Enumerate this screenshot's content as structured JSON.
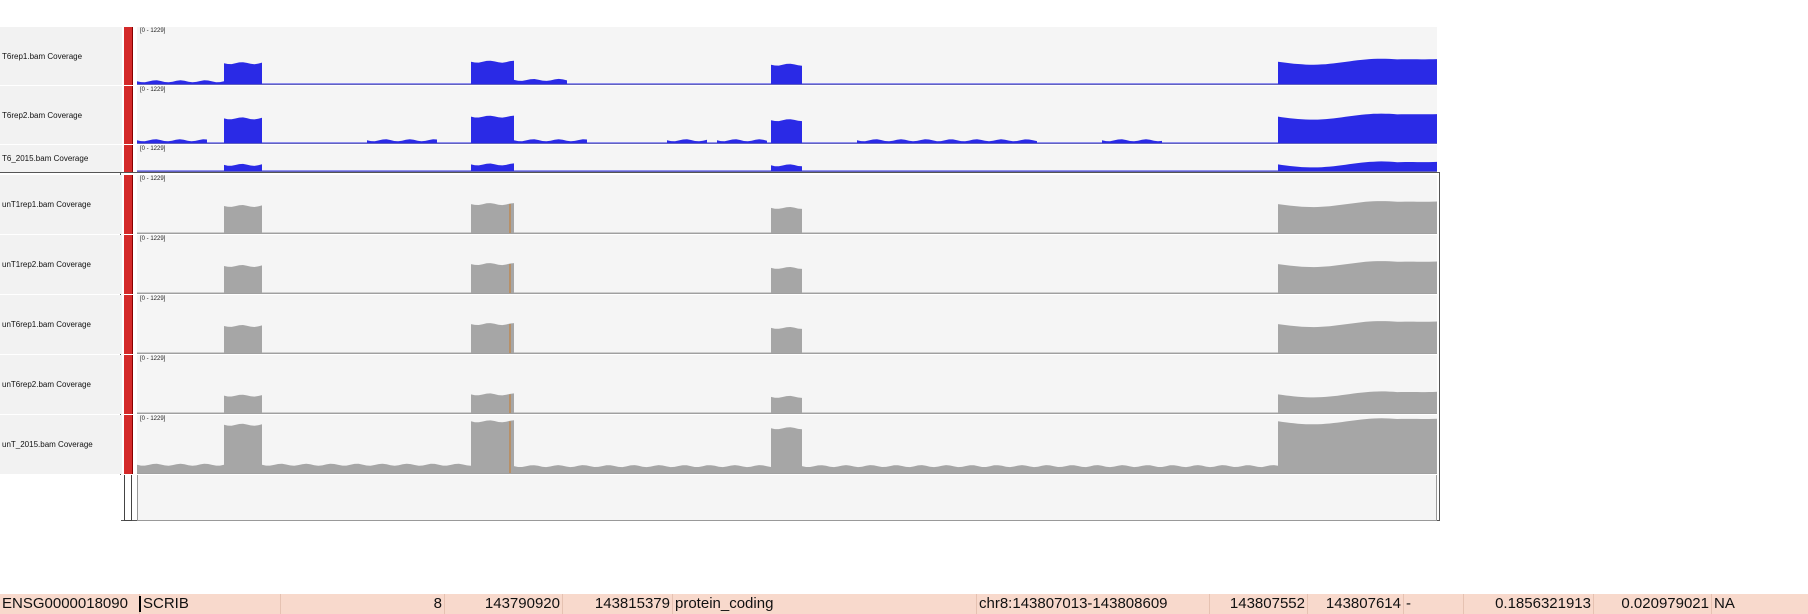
{
  "colors": {
    "top_coverage": "#2a2ae6",
    "bottom_coverage": "#a6a6a6",
    "attribute": "#d42a2a",
    "mismatch": "#c87a2a",
    "result_row": "#f8d9cc"
  },
  "tracks_top": [
    {
      "name": "T6rep1.bam Coverage",
      "range": "[0 - 1229]"
    },
    {
      "name": "T6rep2.bam Coverage",
      "range": "[0 - 1229]"
    },
    {
      "name": "T6_2015.bam Coverage",
      "range": "[0 - 1229]"
    }
  ],
  "tracks_bottom": [
    {
      "name": "unT1rep1.bam Coverage",
      "range": "[0 - 1229]"
    },
    {
      "name": "unT1rep2.bam Coverage",
      "range": "[0 - 1229]"
    },
    {
      "name": "unT6rep1.bam Coverage",
      "range": "[0 - 1229]"
    },
    {
      "name": "unT6rep2.bam Coverage",
      "range": "[0 - 1229]"
    },
    {
      "name": "unT_2015.bam Coverage",
      "range": "[0 - 1229]"
    }
  ],
  "result": {
    "gene_id": "ENSG0000018090",
    "gene_name": "SCRIB",
    "chrom": "8",
    "start": "143790920",
    "end": "143815379",
    "biotype": "protein_coding",
    "locus": "chr8:143807013-143808609",
    "event_start": "143807552",
    "event_end": "143807614",
    "strand": "-",
    "value1": "0.1856321913",
    "value2": "0.020979021",
    "value3": "NA"
  }
}
